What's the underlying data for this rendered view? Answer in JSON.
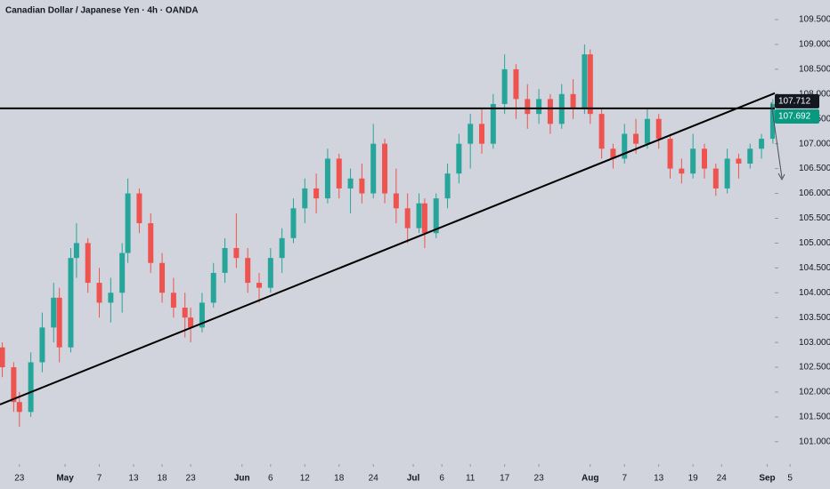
{
  "chart_data": {
    "type": "candlestick",
    "title": "Canadian Dollar / Japanese Yen · 4h · OANDA",
    "up_color": "#26a69a",
    "down_color": "#ef5350",
    "x": [
      -3,
      -1,
      0,
      2,
      4,
      6,
      7,
      9,
      10,
      12,
      14,
      16,
      18,
      19,
      21,
      23,
      25,
      27,
      29,
      30,
      32,
      34,
      36,
      38,
      40,
      42,
      44,
      46,
      48,
      50,
      52,
      54,
      56,
      58,
      60,
      62,
      64,
      66,
      68,
      70,
      71,
      73,
      75,
      77,
      79,
      81,
      83,
      85,
      87,
      89,
      91,
      93,
      95,
      97,
      99,
      100,
      102,
      104,
      106,
      108,
      110,
      112,
      114,
      116,
      118,
      120,
      122,
      124,
      126,
      128,
      130,
      132,
      133
    ],
    "open": [
      102.9,
      102.5,
      101.8,
      101.6,
      102.6,
      103.3,
      103.9,
      102.9,
      104.7,
      105.0,
      104.2,
      103.8,
      104.0,
      104.8,
      106.0,
      105.4,
      104.6,
      104.0,
      103.7,
      103.5,
      103.3,
      103.8,
      104.4,
      104.9,
      104.7,
      104.2,
      104.1,
      104.7,
      105.1,
      105.7,
      106.1,
      105.9,
      106.7,
      106.1,
      106.3,
      106.0,
      107.0,
      106.0,
      105.7,
      105.3,
      105.8,
      105.2,
      105.9,
      106.4,
      107.0,
      107.4,
      107.0,
      107.8,
      108.5,
      107.9,
      107.6,
      107.9,
      107.4,
      108.0,
      107.7,
      108.8,
      107.6,
      106.9,
      106.7,
      107.2,
      107.0,
      107.5,
      107.1,
      106.5,
      106.4,
      106.9,
      106.5,
      106.1,
      106.7,
      106.6,
      106.9,
      107.1,
      107.8
    ],
    "high": [
      103.0,
      102.6,
      102.0,
      102.8,
      103.6,
      104.2,
      104.1,
      104.9,
      105.4,
      105.1,
      104.5,
      104.3,
      105.0,
      106.3,
      106.1,
      105.6,
      104.8,
      104.3,
      104.0,
      103.7,
      104.0,
      104.6,
      105.1,
      105.6,
      104.9,
      104.4,
      104.9,
      105.3,
      105.9,
      106.3,
      106.4,
      106.9,
      106.8,
      106.5,
      106.6,
      107.4,
      107.1,
      106.5,
      106.0,
      106.0,
      105.9,
      106.0,
      106.6,
      107.2,
      107.6,
      107.7,
      108.0,
      108.8,
      108.6,
      108.2,
      108.1,
      108.0,
      108.2,
      108.3,
      109.0,
      108.9,
      107.7,
      107.0,
      107.4,
      107.5,
      107.7,
      107.6,
      107.2,
      106.7,
      107.2,
      107.0,
      106.6,
      106.9,
      106.8,
      107.0,
      107.2,
      107.9,
      107.9
    ],
    "low": [
      102.3,
      101.6,
      101.3,
      101.5,
      102.4,
      103.0,
      102.6,
      102.8,
      104.3,
      104.0,
      103.5,
      103.4,
      103.6,
      104.6,
      105.2,
      104.4,
      103.8,
      103.5,
      103.1,
      103.0,
      103.2,
      103.7,
      104.2,
      104.5,
      104.0,
      103.8,
      104.0,
      104.4,
      105.0,
      105.4,
      105.6,
      105.8,
      105.9,
      105.6,
      105.8,
      105.9,
      105.8,
      105.4,
      105.0,
      105.2,
      104.9,
      105.1,
      105.7,
      106.2,
      106.5,
      106.8,
      106.9,
      107.6,
      107.5,
      107.3,
      107.4,
      107.2,
      107.3,
      107.5,
      107.6,
      107.4,
      106.7,
      106.5,
      106.6,
      106.8,
      106.9,
      106.9,
      106.3,
      106.2,
      106.3,
      106.3,
      105.95,
      106.0,
      106.3,
      106.5,
      106.7,
      107.0,
      107.6
    ],
    "close": [
      102.5,
      101.8,
      101.6,
      102.6,
      103.3,
      103.9,
      102.9,
      104.7,
      105.0,
      104.2,
      103.8,
      104.0,
      104.8,
      106.0,
      105.4,
      104.6,
      104.0,
      103.7,
      103.5,
      103.3,
      103.8,
      104.4,
      104.9,
      104.7,
      104.2,
      104.1,
      104.7,
      105.1,
      105.7,
      106.1,
      105.9,
      106.7,
      106.1,
      106.3,
      106.0,
      107.0,
      106.0,
      105.7,
      105.3,
      105.8,
      105.2,
      105.9,
      106.4,
      107.0,
      107.4,
      107.0,
      107.8,
      108.5,
      107.9,
      107.6,
      107.9,
      107.4,
      108.0,
      107.7,
      108.8,
      107.6,
      106.9,
      106.7,
      107.2,
      107.0,
      107.5,
      107.1,
      106.5,
      106.4,
      106.9,
      106.5,
      106.1,
      106.7,
      106.6,
      106.9,
      107.1,
      107.8,
      107.69
    ],
    "trendline": {
      "x": [
        -3.4,
        135.4
      ],
      "y": [
        101.75,
        108.16
      ]
    },
    "price_labels": [
      {
        "value": 107.712,
        "label": "107.712",
        "color": "#131722"
      },
      {
        "value": 107.692,
        "label": "107.692",
        "color": "#089981"
      }
    ],
    "xlim": [
      -3.4,
      142
    ],
    "ylim": [
      100.55,
      109.894
    ],
    "xticks": [
      {
        "value": 0,
        "label": "23"
      },
      {
        "value": 8,
        "label": "May"
      },
      {
        "value": 14,
        "label": "7"
      },
      {
        "value": 20,
        "label": "13"
      },
      {
        "value": 25,
        "label": "18"
      },
      {
        "value": 30,
        "label": "23"
      },
      {
        "value": 39,
        "label": "Jun"
      },
      {
        "value": 44,
        "label": "6"
      },
      {
        "value": 50,
        "label": "12"
      },
      {
        "value": 56,
        "label": "18"
      },
      {
        "value": 62,
        "label": "24"
      },
      {
        "value": 69,
        "label": "Jul"
      },
      {
        "value": 74,
        "label": "6"
      },
      {
        "value": 79,
        "label": "11"
      },
      {
        "value": 85,
        "label": "17"
      },
      {
        "value": 91,
        "label": "23"
      },
      {
        "value": 100,
        "label": "Aug"
      },
      {
        "value": 106,
        "label": "7"
      },
      {
        "value": 112,
        "label": "13"
      },
      {
        "value": 118,
        "label": "19"
      },
      {
        "value": 123,
        "label": "24"
      },
      {
        "value": 131,
        "label": "Sep"
      },
      {
        "value": 135,
        "label": "5"
      }
    ],
    "yticks": [
      {
        "value": 101,
        "label": "101.000"
      },
      {
        "value": 101.5,
        "label": "101.500"
      },
      {
        "value": 102,
        "label": "102.000"
      },
      {
        "value": 102.5,
        "label": "102.500"
      },
      {
        "value": 103,
        "label": "103.000"
      },
      {
        "value": 103.5,
        "label": "103.500"
      },
      {
        "value": 104,
        "label": "104.000"
      },
      {
        "value": 104.5,
        "label": "104.500"
      },
      {
        "value": 105,
        "label": "105.000"
      },
      {
        "value": 105.5,
        "label": "105.500"
      },
      {
        "value": 106,
        "label": "106.000"
      },
      {
        "value": 106.5,
        "label": "106.500"
      },
      {
        "value": 107,
        "label": "107.000"
      },
      {
        "value": 107.5,
        "label": "107.500"
      },
      {
        "value": 108,
        "label": "108.000"
      },
      {
        "value": 108.5,
        "label": "108.500"
      },
      {
        "value": 109,
        "label": "109.000"
      },
      {
        "value": 109.5,
        "label": "109.500"
      }
    ]
  }
}
